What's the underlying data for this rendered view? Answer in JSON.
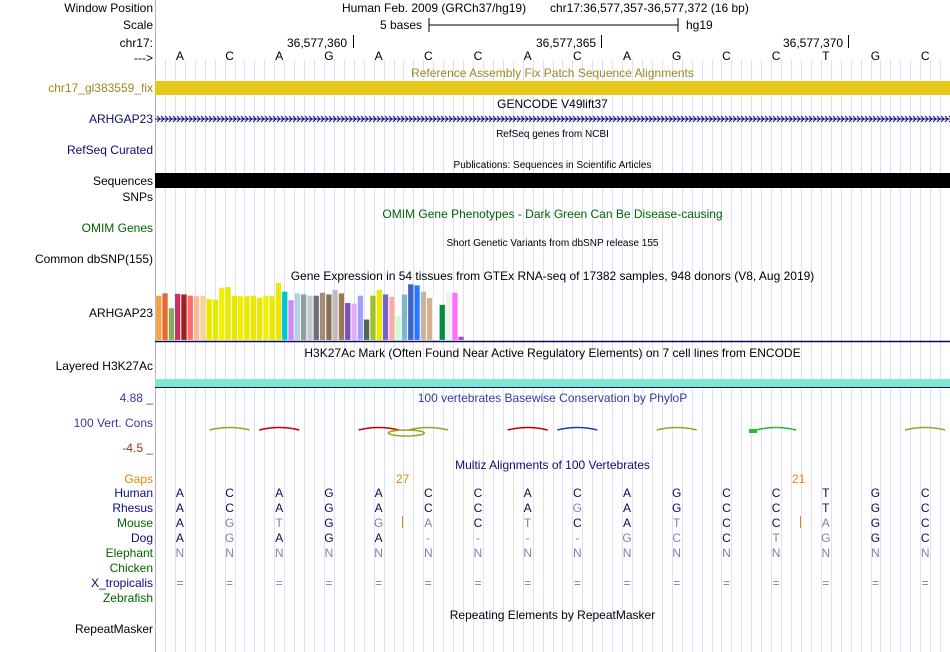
{
  "header": {
    "window_position_label": "Window Position",
    "assembly": "Human Feb. 2009 (GRCh37/hg19)",
    "position": "chr17:36,577,357-36,577,372 (16 bp)",
    "scale_label": "Scale",
    "scale_text": "5 bases",
    "scale_db": "hg19",
    "chrom_label": "chr17:",
    "ticks": [
      "36,577,360",
      "36,577,365",
      "36,577,370"
    ],
    "strand_label": "--->"
  },
  "dna": [
    "A",
    "C",
    "A",
    "G",
    "A",
    "C",
    "C",
    "A",
    "C",
    "A",
    "G",
    "C",
    "C",
    "T",
    "G",
    "C"
  ],
  "tracks": {
    "fix_patch": {
      "title": "Reference Assembly Fix Patch Sequence Alignments",
      "label": "chr17_gl383559_fix",
      "color": "#e6c81a",
      "label_color": "#9b8a1e"
    },
    "gencode": {
      "title": "GENCODE V49lift37",
      "label": "ARHGAP23",
      "color": "#0c0c78"
    },
    "refseq": {
      "title": "RefSeq genes from NCBI",
      "label": "RefSeq Curated",
      "color": "#0c0c78"
    },
    "publications": {
      "title": "Publications: Sequences in Scientific Articles",
      "label": "Sequences"
    },
    "snps": {
      "label": "SNPs"
    },
    "omim": {
      "title": "OMIM Gene Phenotypes - Dark Green Can Be Disease-causing",
      "label": "OMIM Genes",
      "color": "#006400"
    },
    "dbsnp": {
      "title": "Short Genetic Variants from dbSNP release 155",
      "label": "Common dbSNP(155)"
    },
    "gtex": {
      "title": "Gene Expression in 54 tissues from GTEx RNA-seq of 17382 samples, 948 donors (V8, Aug 2019)",
      "label": "ARHGAP23"
    },
    "h3k27ac": {
      "title": "H3K27Ac Mark (Often Found Near Active Regulatory Elements) on 7 cell lines from ENCODE",
      "label": "Layered H3K27Ac",
      "color": "#7fe6d0"
    },
    "phylop": {
      "title": "100 vertebrates Basewise Conservation by PhyloP",
      "label": "100 Vert. Cons",
      "max": "4.88 _",
      "min": "-4.5 _",
      "color": "#3838a0",
      "min_color": "#a03020"
    },
    "multiz": {
      "title": "Multiz Alignments of 100 Vertebrates",
      "gaps_label": "Gaps",
      "gap_counts": [
        "27",
        "21"
      ],
      "gaps_color": "#e08a00"
    },
    "repeatmasker": {
      "title": "Repeating Elements by RepeatMasker",
      "label": "RepeatMasker"
    }
  },
  "gtex_bars": {
    "colors": [
      "#f7a044",
      "#e06a30",
      "#7fb05a",
      "#c83264",
      "#a01e1e",
      "#ff6a6a",
      "#f0c090",
      "#f4d2a0",
      "#e8e800",
      "#e8e800",
      "#f0f000",
      "#e8e800",
      "#e8e800",
      "#f0f000",
      "#e8e800",
      "#e8e800",
      "#e8e800",
      "#f0f000",
      "#e8e800",
      "#e8e800",
      "#00c8c8",
      "#cc88ff",
      "#b4d2e0",
      "#8ca0a0",
      "#c0c8d0",
      "#6e6e6e",
      "#a08c78",
      "#8c6e50",
      "#bcbcbc",
      "#9c7a50",
      "#7850b4",
      "#e6aaff",
      "#a0a0ff",
      "#506450",
      "#a0c032",
      "#e8e800",
      "#7864c8",
      "#ffaaaa",
      "#c8ffc8",
      "#7fb6c8",
      "#3c64c8",
      "#2878ff",
      "#c8b4a0",
      "#d2b48c",
      "#ffffff",
      "#008c46",
      "#f0f0f0",
      "#ff6eff",
      "#a050c0"
    ],
    "values": [
      0.78,
      0.82,
      0.56,
      0.81,
      0.8,
      0.78,
      0.77,
      0.78,
      0.72,
      0.71,
      0.92,
      0.93,
      0.78,
      0.77,
      0.77,
      0.78,
      0.74,
      0.78,
      0.77,
      1.0,
      0.85,
      0.7,
      0.82,
      0.8,
      0.78,
      0.78,
      0.83,
      0.8,
      0.88,
      0.82,
      0.65,
      0.64,
      0.78,
      0.36,
      0.78,
      0.88,
      0.8,
      0.76,
      0.42,
      0.8,
      0.98,
      0.96,
      0.85,
      0.74,
      0.8,
      0.62,
      0.83,
      0.83,
      0.06
    ]
  },
  "phylop_marks": [
    {
      "pos": 1.5,
      "color": "#a0a020"
    },
    {
      "pos": 2.5,
      "color": "#c00000"
    },
    {
      "pos": 4.5,
      "color": "#c00000"
    },
    {
      "pos": 5.5,
      "color": "#a0a020"
    },
    {
      "pos": 7.5,
      "color": "#c00000"
    },
    {
      "pos": 8.5,
      "color": "#2040a0"
    },
    {
      "pos": 10.5,
      "color": "#a0a020"
    },
    {
      "pos": 12.5,
      "color": "#20c020"
    },
    {
      "pos": 15.5,
      "color": "#a0a020"
    }
  ],
  "species": [
    {
      "name": "Human",
      "color": "#0c0c78",
      "bases": [
        "A",
        "C",
        "A",
        "G",
        "A",
        "C",
        "C",
        "A",
        "C",
        "A",
        "G",
        "C",
        "C",
        "T",
        "G",
        "C"
      ],
      "muted": [
        0,
        0,
        0,
        0,
        0,
        0,
        0,
        0,
        0,
        0,
        0,
        0,
        0,
        0,
        0,
        0
      ]
    },
    {
      "name": "Rhesus",
      "color": "#0c0c78",
      "bases": [
        "A",
        "C",
        "A",
        "G",
        "A",
        "C",
        "C",
        "A",
        "G",
        "A",
        "G",
        "C",
        "C",
        "T",
        "G",
        "C"
      ],
      "muted": [
        0,
        0,
        0,
        0,
        0,
        0,
        0,
        0,
        1,
        0,
        0,
        0,
        0,
        0,
        0,
        0
      ]
    },
    {
      "name": "Mouse",
      "color": "#006400",
      "bases": [
        "A",
        "G",
        "T",
        "G",
        "G",
        "A",
        "C",
        "T",
        "C",
        "A",
        "T",
        "C",
        "C",
        "A",
        "G",
        "C"
      ],
      "muted": [
        0,
        1,
        1,
        0,
        1,
        1,
        0,
        1,
        0,
        0,
        1,
        0,
        0,
        1,
        0,
        0
      ]
    },
    {
      "name": "Dog",
      "color": "#0c0c78",
      "bases": [
        "A",
        "G",
        "A",
        "G",
        "A",
        "-",
        "-",
        "-",
        "-",
        "G",
        "C",
        "C",
        "T",
        "G",
        "G",
        "C"
      ],
      "muted": [
        0,
        1,
        0,
        0,
        0,
        1,
        1,
        1,
        1,
        1,
        1,
        0,
        1,
        1,
        0,
        0
      ]
    },
    {
      "name": "Elephant",
      "color": "#006400",
      "bases": [
        "N",
        "N",
        "N",
        "N",
        "N",
        "N",
        "N",
        "N",
        "N",
        "N",
        "N",
        "N",
        "N",
        "N",
        "N",
        "N"
      ],
      "muted": [
        1,
        1,
        1,
        1,
        1,
        1,
        1,
        1,
        1,
        1,
        1,
        1,
        1,
        1,
        1,
        1
      ]
    },
    {
      "name": "Chicken",
      "color": "#006400",
      "bases": [
        "",
        "",
        "",
        "",
        "",
        "",
        "",
        "",
        "",
        "",
        "",
        "",
        "",
        "",
        "",
        ""
      ],
      "muted": [
        0,
        0,
        0,
        0,
        0,
        0,
        0,
        0,
        0,
        0,
        0,
        0,
        0,
        0,
        0,
        0
      ]
    },
    {
      "name": "X_tropicalis",
      "color": "#0c0c78",
      "bases": [
        "=",
        "=",
        "=",
        "=",
        "=",
        "=",
        "=",
        "=",
        "=",
        "=",
        "=",
        "=",
        "=",
        "=",
        "=",
        "="
      ],
      "muted": [
        1,
        1,
        1,
        1,
        1,
        1,
        1,
        1,
        1,
        1,
        1,
        1,
        1,
        1,
        1,
        1
      ]
    },
    {
      "name": "Zebrafish",
      "color": "#006400",
      "bases": [
        "",
        "",
        "",
        "",
        "",
        "",
        "",
        "",
        "",
        "",
        "",
        "",
        "",
        "",
        "",
        ""
      ],
      "muted": [
        0,
        0,
        0,
        0,
        0,
        0,
        0,
        0,
        0,
        0,
        0,
        0,
        0,
        0,
        0,
        0
      ]
    }
  ],
  "colors": {
    "grid": "#c8c8ff",
    "band_black": "#000000",
    "muted_base": "#8080b0"
  }
}
